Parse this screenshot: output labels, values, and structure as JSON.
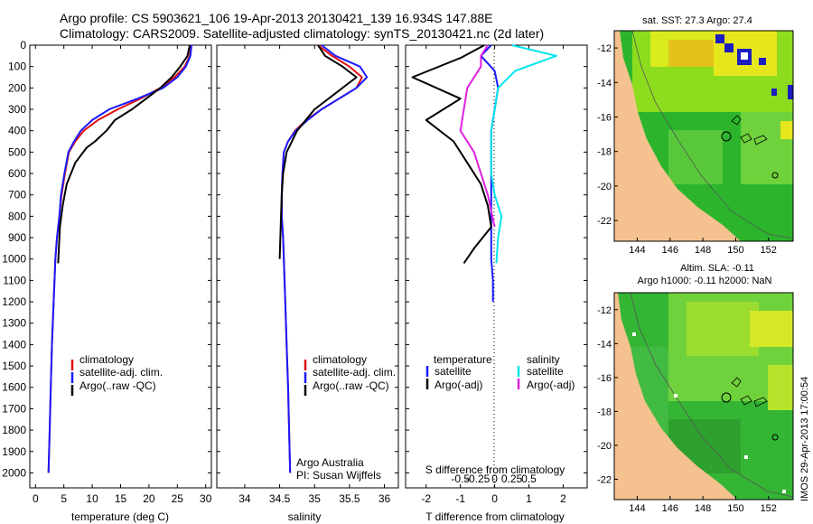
{
  "header": {
    "line1": "Argo profile: CS 5903621_106 19-Apr-2013 20130421_139 16.934S 147.88E",
    "line2": "Climatology: CARS2009. Satellite-adjusted climatology: synTS_20130421.nc (2d later)"
  },
  "colors": {
    "climatology": "#e01010",
    "satellite": "#1a1aff",
    "argo": "#000000",
    "sal_satellite": "#00e5ee",
    "sal_argo": "#e020e0",
    "land": "#f5c18e"
  },
  "chart_data": [
    {
      "type": "line",
      "id": "temperature",
      "xlabel": "temperature (deg C)",
      "ylabel": "",
      "xlim": [
        -1,
        31
      ],
      "ylim": [
        0,
        2070
      ],
      "xticks": [
        0,
        5,
        10,
        15,
        20,
        25,
        30
      ],
      "yticks": [
        0,
        100,
        200,
        300,
        400,
        500,
        600,
        700,
        800,
        900,
        1000,
        1100,
        1200,
        1300,
        1400,
        1500,
        1600,
        1700,
        1800,
        1900,
        2000
      ],
      "legend": [
        "climatology",
        "satellite-adj. clim.",
        "Argo(..raw -QC)"
      ],
      "series": [
        {
          "name": "climatology",
          "color": "#e01010",
          "x": [
            27.4,
            27.2,
            26.3,
            24.5,
            22.0,
            18.5,
            14.5,
            11.0,
            8.5,
            7.0,
            5.9,
            5.2,
            4.6,
            4.2,
            3.8,
            3.5,
            3.2,
            2.9,
            2.7,
            2.5,
            2.3
          ],
          "y": [
            0,
            50,
            100,
            150,
            200,
            250,
            300,
            350,
            400,
            450,
            500,
            600,
            700,
            800,
            900,
            1000,
            1200,
            1400,
            1600,
            1800,
            2000
          ]
        },
        {
          "name": "satellite-adj. clim.",
          "color": "#1a1aff",
          "x": [
            27.5,
            27.3,
            26.5,
            25.0,
            22.5,
            18.0,
            13.0,
            10.0,
            8.0,
            6.8,
            5.8,
            5.1,
            4.5,
            4.2,
            3.8,
            3.5,
            3.2,
            2.9,
            2.7,
            2.5,
            2.3
          ],
          "y": [
            0,
            50,
            100,
            150,
            200,
            250,
            300,
            350,
            400,
            450,
            500,
            600,
            700,
            800,
            900,
            1000,
            1200,
            1400,
            1600,
            1800,
            2000
          ]
        },
        {
          "name": "Argo(..raw -QC)",
          "color": "#000000",
          "x": [
            27.2,
            26.8,
            25.5,
            24.0,
            22.0,
            19.5,
            17.0,
            14.0,
            12.5,
            10.5,
            9.0,
            7.0,
            5.5,
            4.8,
            4.3,
            4.0
          ],
          "y": [
            0,
            50,
            100,
            150,
            200,
            250,
            300,
            350,
            400,
            450,
            480,
            550,
            650,
            750,
            850,
            1020
          ]
        }
      ]
    },
    {
      "type": "line",
      "id": "salinity",
      "xlabel": "salinity",
      "ylabel": "",
      "xlim": [
        33.6,
        36.2
      ],
      "ylim": [
        0,
        2070
      ],
      "xticks": [
        34,
        34.5,
        35,
        35.5,
        36
      ],
      "legend": [
        "climatology",
        "satellite-adj. clim.",
        "Argo(..raw -QC)"
      ],
      "annotations": [
        "Argo Australia",
        "PI: Susan Wijffels"
      ],
      "series": [
        {
          "name": "climatology",
          "color": "#e01010",
          "x": [
            35.05,
            35.25,
            35.5,
            35.68,
            35.6,
            35.35,
            35.1,
            34.88,
            34.72,
            34.62,
            34.56,
            34.54,
            34.53,
            34.53,
            34.55,
            34.56,
            34.58,
            34.6,
            34.62,
            34.65
          ],
          "y": [
            0,
            50,
            100,
            150,
            200,
            250,
            300,
            350,
            400,
            450,
            500,
            600,
            700,
            800,
            900,
            1000,
            1200,
            1400,
            1600,
            2000
          ]
        },
        {
          "name": "satellite-adj. clim.",
          "color": "#1a1aff",
          "x": [
            35.1,
            35.3,
            35.65,
            35.75,
            35.6,
            35.35,
            35.1,
            34.9,
            34.73,
            34.62,
            34.56,
            34.54,
            34.53,
            34.53,
            34.55,
            34.56,
            34.58,
            34.6,
            34.62,
            34.65
          ],
          "y": [
            0,
            50,
            100,
            150,
            200,
            250,
            300,
            350,
            400,
            450,
            500,
            600,
            700,
            800,
            900,
            1000,
            1200,
            1400,
            1600,
            2000
          ]
        },
        {
          "name": "Argo(..raw -QC)",
          "color": "#000000",
          "x": [
            35.05,
            35.15,
            35.4,
            35.6,
            35.4,
            35.0,
            34.75,
            34.6,
            34.55,
            34.53,
            34.52,
            34.5
          ],
          "y": [
            0,
            50,
            100,
            150,
            200,
            300,
            400,
            500,
            600,
            700,
            800,
            1000
          ]
        }
      ]
    },
    {
      "type": "line",
      "id": "differences",
      "xlabel": "T difference from climatology",
      "xlabel_top": "S difference from climatology",
      "xlim": [
        -2.6,
        2.7
      ],
      "ylim": [
        0,
        2070
      ],
      "xticks": [
        -2,
        -1,
        0,
        1,
        2
      ],
      "xticks_s": [
        "-0.5",
        "-0.25",
        "0",
        "0.25",
        "0.5"
      ],
      "legend_titles": [
        "temperature",
        "salinity"
      ],
      "legend": [
        "satellite",
        "Argo(-adj)",
        "satellite",
        "Argo(-adj)"
      ],
      "series": [
        {
          "name": "T satellite",
          "color": "#1a1aff",
          "x": [
            -0.1,
            -0.4,
            0.0,
            0.1,
            -0.1,
            -0.1,
            -0.1,
            -0.1,
            -0.05,
            -0.05
          ],
          "y": [
            0,
            50,
            120,
            200,
            400,
            600,
            800,
            1000,
            1100,
            1200
          ]
        },
        {
          "name": "T Argo(-adj)",
          "color": "#000000",
          "x": [
            -0.3,
            -1.0,
            -2.4,
            -1.0,
            -2.0,
            -1.2,
            -0.8,
            -0.4,
            -0.2,
            -0.1,
            -0.6,
            -0.9
          ],
          "y": [
            0,
            60,
            150,
            250,
            350,
            450,
            550,
            650,
            750,
            850,
            950,
            1020
          ]
        },
        {
          "name": "S satellite",
          "color": "#00e5ee",
          "x": [
            0.5,
            1.8,
            0.6,
            0.1,
            -0.1,
            -0.1,
            0.0,
            0.2,
            0.1,
            0.05
          ],
          "y": [
            0,
            50,
            120,
            200,
            400,
            600,
            700,
            800,
            900,
            1020
          ]
        },
        {
          "name": "S Argo(-adj)",
          "color": "#e020e0",
          "x": [
            -0.2,
            -0.4,
            -0.4,
            -0.8,
            -1.0,
            -0.6,
            -0.2,
            0.0
          ],
          "y": [
            0,
            50,
            100,
            200,
            400,
            500,
            700,
            850
          ]
        }
      ]
    },
    {
      "type": "heatmap",
      "id": "sst-map",
      "title": "sat. SST: 27.3  Argo: 27.4",
      "xticks": [
        144,
        146,
        148,
        150,
        152
      ],
      "yticks": [
        -12,
        -14,
        -16,
        -18,
        -20,
        -22
      ],
      "xlim": [
        142.6,
        153.5
      ],
      "ylim": [
        -23.2,
        -11
      ]
    },
    {
      "type": "heatmap",
      "id": "sla-map",
      "title": "Altim. SLA: -0.11",
      "subtitle": "Argo h1000: -0.11  h2000: NaN",
      "xticks": [
        144,
        146,
        148,
        150,
        152
      ],
      "yticks": [
        -12,
        -14,
        -16,
        -18,
        -20,
        -22
      ],
      "xlim": [
        142.6,
        153.5
      ],
      "ylim": [
        -23.2,
        -11
      ]
    }
  ],
  "footer": {
    "side_label": "IMOS 29-Apr-2013 17:00:54"
  }
}
